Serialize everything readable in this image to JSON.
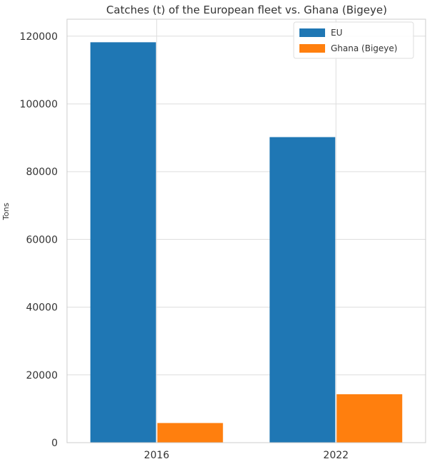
{
  "chart_data": {
    "type": "bar",
    "title": "Catches (t) of the European fleet vs. Ghana (Bigeye)",
    "xlabel": "",
    "ylabel": "Tons",
    "categories": [
      "2016",
      "2022"
    ],
    "series": [
      {
        "name": "EU",
        "values": [
          118200,
          90200
        ]
      },
      {
        "name": "Ghana (Bigeye)",
        "values": [
          5800,
          14300
        ]
      }
    ],
    "ylim": [
      0,
      125000
    ],
    "yticks": [
      0,
      20000,
      40000,
      60000,
      80000,
      100000,
      120000
    ],
    "grid": true,
    "legend": "top-right",
    "colors": {
      "EU": "#1f77b4",
      "Ghana (Bigeye)": "#ff7f0e"
    }
  }
}
